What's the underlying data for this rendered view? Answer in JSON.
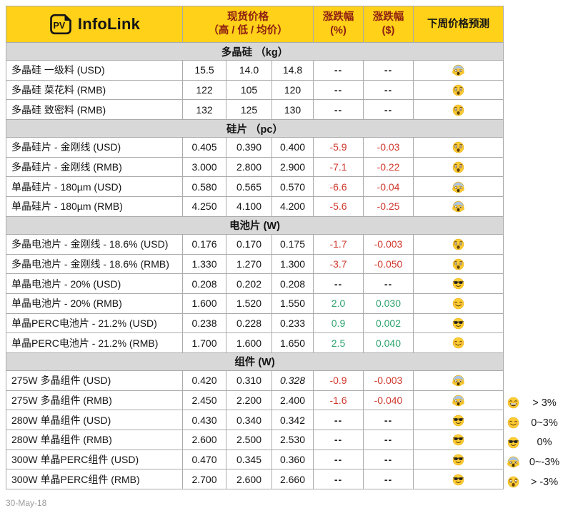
{
  "header": {
    "logo_pv": "PV",
    "brand": "InfoLink",
    "price_line1": "现货价格",
    "price_line2": "（高 / 低 / 均价）",
    "pct_line1": "涨跌幅",
    "pct_line2": "(%)",
    "usd_line1": "涨跌幅",
    "usd_line2": "($)",
    "forecast": "下周价格预测"
  },
  "sections": [
    {
      "title": "多晶硅 （kg）",
      "rows": [
        {
          "name": "多晶硅 一级料 (USD)",
          "high": "15.5",
          "low": "14.0",
          "avg": "14.8",
          "pct": "--",
          "chg": "--",
          "forecast": "scream"
        },
        {
          "name": "多晶硅 菜花料 (RMB)",
          "high": "122",
          "low": "105",
          "avg": "120",
          "pct": "--",
          "chg": "--",
          "forecast": "astonished"
        },
        {
          "name": "多晶硅 致密料 (RMB)",
          "high": "132",
          "low": "125",
          "avg": "130",
          "pct": "--",
          "chg": "--",
          "forecast": "astonished"
        }
      ]
    },
    {
      "title": "硅片 （pc）",
      "rows": [
        {
          "name": "多晶硅片 - 金刚线 (USD)",
          "high": "0.405",
          "low": "0.390",
          "avg": "0.400",
          "pct": "-5.9",
          "chg": "-0.03",
          "forecast": "astonished"
        },
        {
          "name": "多晶硅片 - 金刚线 (RMB)",
          "high": "3.000",
          "low": "2.800",
          "avg": "2.900",
          "pct": "-7.1",
          "chg": "-0.22",
          "forecast": "astonished"
        },
        {
          "name": "单晶硅片 - 180µm (USD)",
          "high": "0.580",
          "low": "0.565",
          "avg": "0.570",
          "pct": "-6.6",
          "chg": "-0.04",
          "forecast": "scream"
        },
        {
          "name": "单晶硅片 - 180µm (RMB)",
          "high": "4.250",
          "low": "4.100",
          "avg": "4.200",
          "pct": "-5.6",
          "chg": "-0.25",
          "forecast": "scream"
        }
      ]
    },
    {
      "title": "电池片 (W)",
      "rows": [
        {
          "name": "多晶电池片 - 金刚线 - 18.6% (USD)",
          "high": "0.176",
          "low": "0.170",
          "avg": "0.175",
          "pct": "-1.7",
          "chg": "-0.003",
          "forecast": "astonished"
        },
        {
          "name": "多晶电池片 - 金刚线 - 18.6% (RMB)",
          "high": "1.330",
          "low": "1.270",
          "avg": "1.300",
          "pct": "-3.7",
          "chg": "-0.050",
          "forecast": "astonished"
        },
        {
          "name": "单晶电池片 - 20% (USD)",
          "high": "0.208",
          "low": "0.202",
          "avg": "0.208",
          "pct": "--",
          "chg": "--",
          "forecast": "sunglasses"
        },
        {
          "name": "单晶电池片 - 20% (RMB)",
          "high": "1.600",
          "low": "1.520",
          "avg": "1.550",
          "pct": "2.0",
          "chg": "0.030",
          "forecast": "smile"
        },
        {
          "name": "单晶PERC电池片 - 21.2% (USD)",
          "high": "0.238",
          "low": "0.228",
          "avg": "0.233",
          "pct": "0.9",
          "chg": "0.002",
          "forecast": "sunglasses"
        },
        {
          "name": "单晶PERC电池片 - 21.2% (RMB)",
          "high": "1.700",
          "low": "1.600",
          "avg": "1.650",
          "pct": "2.5",
          "chg": "0.040",
          "forecast": "smile"
        }
      ]
    },
    {
      "title": "组件 (W)",
      "rows": [
        {
          "name": "275W 多晶组件 (USD)",
          "high": "0.420",
          "low": "0.310",
          "avg": "0.328",
          "avg_italic": true,
          "pct": "-0.9",
          "chg": "-0.003",
          "forecast": "scream"
        },
        {
          "name": "275W 多晶组件 (RMB)",
          "high": "2.450",
          "low": "2.200",
          "avg": "2.400",
          "pct": "-1.6",
          "chg": "-0.040",
          "forecast": "scream"
        },
        {
          "name": "280W 单晶组件 (USD)",
          "high": "0.430",
          "low": "0.340",
          "avg": "0.342",
          "pct": "--",
          "chg": "--",
          "forecast": "sunglasses"
        },
        {
          "name": "280W 单晶组件 (RMB)",
          "high": "2.600",
          "low": "2.500",
          "avg": "2.530",
          "pct": "--",
          "chg": "--",
          "forecast": "sunglasses"
        },
        {
          "name": "300W 单晶PERC组件 (USD)",
          "high": "0.470",
          "low": "0.345",
          "avg": "0.360",
          "pct": "--",
          "chg": "--",
          "forecast": "sunglasses"
        },
        {
          "name": "300W 单晶PERC组件 (RMB)",
          "high": "2.700",
          "low": "2.600",
          "avg": "2.660",
          "pct": "--",
          "chg": "--",
          "forecast": "sunglasses"
        }
      ]
    }
  ],
  "legend": [
    {
      "icon": "grin",
      "label": "> 3%"
    },
    {
      "icon": "smile",
      "label": "0~3%"
    },
    {
      "icon": "sunglasses",
      "label": "0%"
    },
    {
      "icon": "scream",
      "label": "0~-3%"
    },
    {
      "icon": "astonished",
      "label": "> -3%"
    }
  ],
  "footer": {
    "date": "30-May-18"
  },
  "colors": {
    "header_yellow": "#FFD119",
    "header_dark_red": "#8E1E12",
    "section_gray": "#D8D8D8",
    "value_red": "#CF382C",
    "value_green": "#2FA36E",
    "border_gray": "#ABABAB",
    "emoji_yellow": "#FFCC33"
  }
}
